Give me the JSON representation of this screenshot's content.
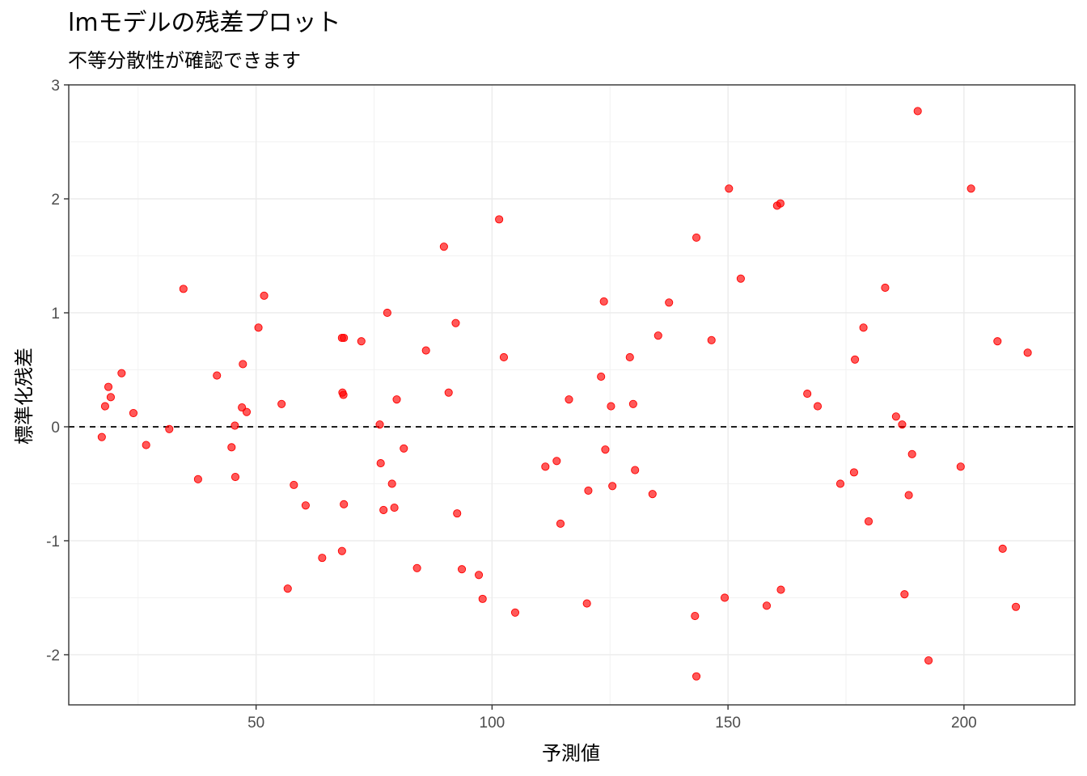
{
  "chart_data": {
    "type": "scatter",
    "title": "lmモデルの残差プロット",
    "subtitle": "不等分散性が確認できます",
    "xlabel": "予測値",
    "ylabel": "標準化残差",
    "xlim": [
      10.3,
      223.5
    ],
    "ylim": [
      -2.44,
      3.0
    ],
    "x_ticks": [
      50,
      100,
      150,
      200
    ],
    "y_ticks": [
      -2,
      -1,
      0,
      1,
      2,
      3
    ],
    "x_tick_labels": [
      "50",
      "100",
      "150",
      "200"
    ],
    "y_tick_labels": [
      "-2",
      "-1",
      "0",
      "1",
      "2",
      "3"
    ],
    "grid": true,
    "reference_line": {
      "y": 0,
      "style": "dashed",
      "color": "#000000"
    },
    "point_color": "#ff0000",
    "points": [
      {
        "x": 17.3,
        "y": -0.09
      },
      {
        "x": 18.0,
        "y": 0.18
      },
      {
        "x": 18.7,
        "y": 0.35
      },
      {
        "x": 19.2,
        "y": 0.26
      },
      {
        "x": 21.5,
        "y": 0.47
      },
      {
        "x": 24.0,
        "y": 0.12
      },
      {
        "x": 26.7,
        "y": -0.16
      },
      {
        "x": 31.6,
        "y": -0.02
      },
      {
        "x": 34.6,
        "y": 1.21
      },
      {
        "x": 37.7,
        "y": -0.46
      },
      {
        "x": 41.7,
        "y": 0.45
      },
      {
        "x": 44.8,
        "y": -0.18
      },
      {
        "x": 45.5,
        "y": 0.01
      },
      {
        "x": 45.6,
        "y": -0.44
      },
      {
        "x": 47.0,
        "y": 0.17
      },
      {
        "x": 47.2,
        "y": 0.55
      },
      {
        "x": 48.0,
        "y": 0.13
      },
      {
        "x": 50.5,
        "y": 0.87
      },
      {
        "x": 51.7,
        "y": 1.15
      },
      {
        "x": 55.4,
        "y": 0.2
      },
      {
        "x": 56.7,
        "y": -1.42
      },
      {
        "x": 58.0,
        "y": -0.51
      },
      {
        "x": 60.5,
        "y": -0.69
      },
      {
        "x": 64.0,
        "y": -1.15
      },
      {
        "x": 68.2,
        "y": 0.78
      },
      {
        "x": 68.6,
        "y": 0.78
      },
      {
        "x": 68.3,
        "y": 0.3
      },
      {
        "x": 68.5,
        "y": 0.28
      },
      {
        "x": 68.2,
        "y": -1.09
      },
      {
        "x": 68.6,
        "y": -0.68
      },
      {
        "x": 72.3,
        "y": 0.75
      },
      {
        "x": 76.2,
        "y": 0.02
      },
      {
        "x": 76.4,
        "y": -0.32
      },
      {
        "x": 77.0,
        "y": -0.73
      },
      {
        "x": 77.8,
        "y": 1.0
      },
      {
        "x": 78.8,
        "y": -0.5
      },
      {
        "x": 79.3,
        "y": -0.71
      },
      {
        "x": 79.8,
        "y": 0.24
      },
      {
        "x": 81.3,
        "y": -0.19
      },
      {
        "x": 84.1,
        "y": -1.24
      },
      {
        "x": 86.0,
        "y": 0.67
      },
      {
        "x": 89.8,
        "y": 1.58
      },
      {
        "x": 90.8,
        "y": 0.3
      },
      {
        "x": 92.3,
        "y": 0.91
      },
      {
        "x": 92.6,
        "y": -0.76
      },
      {
        "x": 93.6,
        "y": -1.25
      },
      {
        "x": 97.2,
        "y": -1.3
      },
      {
        "x": 98.0,
        "y": -1.51
      },
      {
        "x": 101.5,
        "y": 1.82
      },
      {
        "x": 102.5,
        "y": 0.61
      },
      {
        "x": 104.9,
        "y": -1.63
      },
      {
        "x": 111.3,
        "y": -0.35
      },
      {
        "x": 113.7,
        "y": -0.3
      },
      {
        "x": 114.5,
        "y": -0.85
      },
      {
        "x": 116.3,
        "y": 0.24
      },
      {
        "x": 120.1,
        "y": -1.55
      },
      {
        "x": 120.4,
        "y": -0.56
      },
      {
        "x": 123.1,
        "y": 0.44
      },
      {
        "x": 123.7,
        "y": 1.1
      },
      {
        "x": 124.0,
        "y": -0.2
      },
      {
        "x": 125.2,
        "y": 0.18
      },
      {
        "x": 125.5,
        "y": -0.52
      },
      {
        "x": 129.2,
        "y": 0.61
      },
      {
        "x": 129.9,
        "y": 0.2
      },
      {
        "x": 130.3,
        "y": -0.38
      },
      {
        "x": 134.0,
        "y": -0.59
      },
      {
        "x": 135.2,
        "y": 0.8
      },
      {
        "x": 137.5,
        "y": 1.09
      },
      {
        "x": 143.0,
        "y": -1.66
      },
      {
        "x": 143.3,
        "y": 1.66
      },
      {
        "x": 143.3,
        "y": -2.19
      },
      {
        "x": 146.5,
        "y": 0.76
      },
      {
        "x": 149.3,
        "y": -1.5
      },
      {
        "x": 150.2,
        "y": 2.09
      },
      {
        "x": 152.7,
        "y": 1.3
      },
      {
        "x": 158.2,
        "y": -1.57
      },
      {
        "x": 160.4,
        "y": 1.94
      },
      {
        "x": 161.1,
        "y": 1.96
      },
      {
        "x": 161.2,
        "y": -1.43
      },
      {
        "x": 166.8,
        "y": 0.29
      },
      {
        "x": 169.0,
        "y": 0.18
      },
      {
        "x": 173.8,
        "y": -0.5
      },
      {
        "x": 176.7,
        "y": -0.4
      },
      {
        "x": 176.9,
        "y": 0.59
      },
      {
        "x": 178.7,
        "y": 0.87
      },
      {
        "x": 179.8,
        "y": -0.83
      },
      {
        "x": 183.3,
        "y": 1.22
      },
      {
        "x": 185.6,
        "y": 0.09
      },
      {
        "x": 186.9,
        "y": 0.02
      },
      {
        "x": 187.4,
        "y": -1.47
      },
      {
        "x": 188.3,
        "y": -0.6
      },
      {
        "x": 189.0,
        "y": -0.24
      },
      {
        "x": 190.2,
        "y": 2.77
      },
      {
        "x": 192.5,
        "y": -2.05
      },
      {
        "x": 199.3,
        "y": -0.35
      },
      {
        "x": 201.5,
        "y": 2.09
      },
      {
        "x": 207.1,
        "y": 0.75
      },
      {
        "x": 208.2,
        "y": -1.07
      },
      {
        "x": 211.0,
        "y": -1.58
      },
      {
        "x": 213.5,
        "y": 0.65
      }
    ]
  }
}
